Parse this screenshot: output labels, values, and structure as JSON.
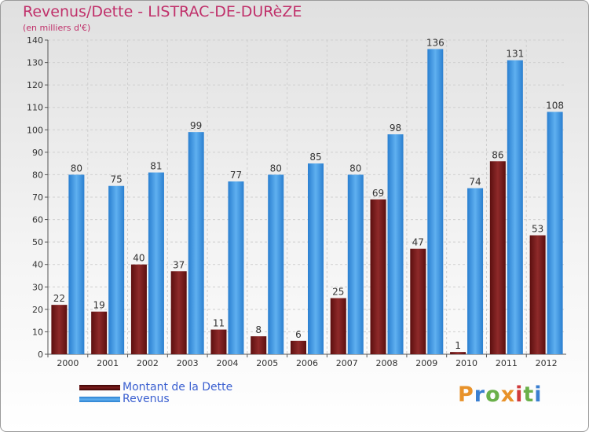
{
  "chart_data": {
    "type": "bar",
    "title": "Revenus/Dette - LISTRAC-DE-DURèZE",
    "subtitle": "(en milliers d'€)",
    "categories": [
      "2000",
      "2001",
      "2002",
      "2003",
      "2004",
      "2005",
      "2006",
      "2007",
      "2008",
      "2009",
      "2010",
      "2011",
      "2012"
    ],
    "series": [
      {
        "name": "Montant de la Dette",
        "color": "#7a1c1c",
        "values": [
          22,
          19,
          40,
          37,
          11,
          8,
          6,
          25,
          69,
          47,
          1,
          86,
          53
        ]
      },
      {
        "name": "Revenus",
        "color": "#4aa0e8",
        "values": [
          80,
          75,
          81,
          99,
          77,
          80,
          85,
          80,
          98,
          136,
          74,
          131,
          108
        ]
      }
    ],
    "ylim": [
      0,
      140
    ],
    "yticks": [
      0,
      10,
      20,
      30,
      40,
      50,
      60,
      70,
      80,
      90,
      100,
      110,
      120,
      130,
      140
    ],
    "grid": true,
    "legend": "bottom-left"
  },
  "logo_text": "Proxiti"
}
